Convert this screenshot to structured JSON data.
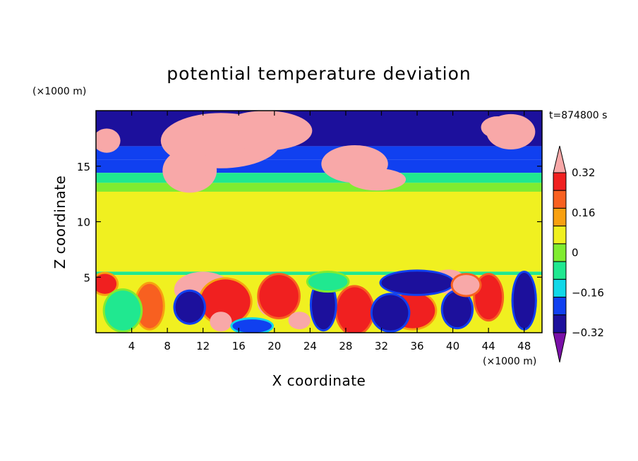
{
  "chart_data": {
    "type": "heatmap",
    "title": "potential temperature deviation",
    "xlabel": "X coordinate",
    "ylabel": "Z coordinate",
    "x_unit": "(×1000 m)",
    "y_unit": "(×1000 m)",
    "time_label": "t=874800 s",
    "xlim": [
      0,
      50
    ],
    "ylim": [
      0,
      20
    ],
    "x_ticks": [
      "4",
      "8",
      "12",
      "16",
      "20",
      "24",
      "28",
      "32",
      "36",
      "40",
      "44",
      "48"
    ],
    "y_ticks": [
      "5",
      "10",
      "15"
    ],
    "x_tick_values": [
      4,
      8,
      12,
      16,
      20,
      24,
      28,
      32,
      36,
      40,
      44,
      48
    ],
    "y_tick_values": [
      5,
      10,
      15
    ],
    "colorbar": {
      "labels": [
        "0.32",
        "0.16",
        "0",
        "−0.16",
        "−0.32"
      ],
      "label_values": [
        0.32,
        0.16,
        0,
        -0.16,
        -0.32
      ],
      "levels": [
        -0.4,
        -0.32,
        -0.24,
        -0.16,
        -0.08,
        0,
        0.08,
        0.16,
        0.24,
        0.32,
        0.4
      ],
      "colors": [
        "#7a10a8",
        "#1c109c",
        "#1040f0",
        "#10d8e8",
        "#20e890",
        "#80ec30",
        "#f0f020",
        "#f8a010",
        "#f86020",
        "#f02020",
        "#f8a8a8"
      ],
      "extend": "both"
    },
    "layers": [
      {
        "name": "upper",
        "z": [
          16.8,
          20
        ],
        "value": -0.36
      },
      {
        "name": "upper-edge",
        "z": [
          15.6,
          16.8
        ],
        "value": -0.3
      },
      {
        "name": "transition-1",
        "z": [
          14.4,
          15.6
        ],
        "value": -0.28
      },
      {
        "name": "transition-2",
        "z": [
          13.5,
          14.4
        ],
        "value": -0.14
      },
      {
        "name": "transition-3",
        "z": [
          12.7,
          13.5
        ],
        "value": -0.06
      },
      {
        "name": "middle",
        "z": [
          5.5,
          12.7
        ],
        "value": 0.03
      },
      {
        "name": "inversion",
        "z": [
          5.2,
          5.5
        ],
        "value": -0.14
      },
      {
        "name": "lower",
        "z": [
          0,
          5.2
        ],
        "value": 0
      }
    ],
    "blobs": [
      {
        "x": 14,
        "z": 17.3,
        "rx": 6.5,
        "rz": 2.3,
        "value": 0.44
      },
      {
        "x": 19,
        "z": 18.2,
        "rx": 5,
        "rz": 1.6,
        "value": 0.44
      },
      {
        "x": 10.5,
        "z": 14.6,
        "rx": 2.8,
        "rz": 1.8,
        "value": 0.44
      },
      {
        "x": 29,
        "z": 15.2,
        "rx": 3.5,
        "rz": 1.5,
        "value": 0.44
      },
      {
        "x": 31.5,
        "z": 13.8,
        "rx": 3,
        "rz": 0.8,
        "value": 0.44
      },
      {
        "x": 1.2,
        "z": 17.3,
        "rx": 1.3,
        "rz": 0.9,
        "value": 0.44
      },
      {
        "x": 46.5,
        "z": 18.1,
        "rx": 2.5,
        "rz": 1.4,
        "value": 0.44
      },
      {
        "x": 45,
        "z": 18.5,
        "rx": 1.6,
        "rz": 0.8,
        "value": 0.44
      },
      {
        "x": 12,
        "z": 3.9,
        "rx": 3,
        "rz": 1.4,
        "value": 0.44
      },
      {
        "x": 14.5,
        "z": 2.8,
        "rx": 2.8,
        "rz": 2,
        "value": 0.25
      },
      {
        "x": 19.5,
        "z": 2.8,
        "rx": 1.2,
        "rz": 1.1,
        "value": 0.44
      },
      {
        "x": 20.5,
        "z": 3.3,
        "rx": 2.2,
        "rz": 1.9,
        "value": 0.3
      },
      {
        "x": 29,
        "z": 1.8,
        "rx": 1.3,
        "rz": 1.5,
        "value": 0.44
      },
      {
        "x": 29,
        "z": 2,
        "rx": 2,
        "rz": 2.1,
        "value": 0.3
      },
      {
        "x": 22.8,
        "z": 1.1,
        "rx": 1,
        "rz": 0.6,
        "value": 0.44
      },
      {
        "x": 14,
        "z": 1,
        "rx": 1,
        "rz": 0.7,
        "value": 0.44
      },
      {
        "x": 39.5,
        "z": 4.6,
        "rx": 1.8,
        "rz": 0.9,
        "value": 0.44
      },
      {
        "x": 6,
        "z": 2.4,
        "rx": 1.5,
        "rz": 2,
        "value": 0.2
      },
      {
        "x": 1,
        "z": 4.4,
        "rx": 1.3,
        "rz": 0.9,
        "value": 0.24
      },
      {
        "x": 44,
        "z": 3.2,
        "rx": 1.5,
        "rz": 2,
        "value": 0.28
      },
      {
        "x": 35.5,
        "z": 2,
        "rx": 2.5,
        "rz": 1.6,
        "value": 0.26
      },
      {
        "x": 36,
        "z": 4.5,
        "rx": 4,
        "rz": 1,
        "value": -0.38
      },
      {
        "x": 10.5,
        "z": 2.3,
        "rx": 1.6,
        "rz": 1.4,
        "value": -0.38
      },
      {
        "x": 25.5,
        "z": 2.5,
        "rx": 1.3,
        "rz": 2.2,
        "value": -0.34
      },
      {
        "x": 33,
        "z": 1.8,
        "rx": 2,
        "rz": 1.6,
        "value": -0.36
      },
      {
        "x": 40.5,
        "z": 2.1,
        "rx": 1.6,
        "rz": 1.6,
        "value": -0.4
      },
      {
        "x": 48,
        "z": 2.9,
        "rx": 1.2,
        "rz": 2.5,
        "value": -0.38
      },
      {
        "x": 17.5,
        "z": 0.6,
        "rx": 2.2,
        "rz": 0.6,
        "value": -0.3
      },
      {
        "x": 3,
        "z": 2,
        "rx": 2,
        "rz": 1.8,
        "value": -0.12
      },
      {
        "x": 26,
        "z": 4.6,
        "rx": 2.2,
        "rz": 0.8,
        "value": -0.16
      },
      {
        "x": 41.5,
        "z": 4.3,
        "rx": 1.5,
        "rz": 0.9,
        "value": 0.34
      }
    ]
  }
}
